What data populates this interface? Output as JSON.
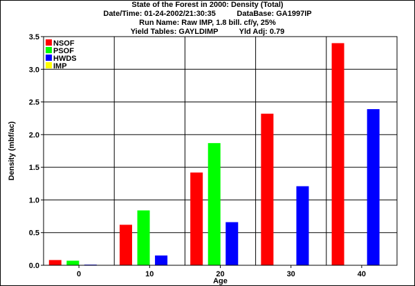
{
  "header": {
    "title": "State of the Forest in 2000: Density (Total)",
    "datetime": "Date/Time: 01-24-2002/21:30:35",
    "database": "DataBase: GA1997IP",
    "run_name": "Run Name: Raw IMP, 1.8 bill. cf/y, 25%",
    "yield_tables": "Yield Tables: GAYLDIMP",
    "yld_adj": "Yld Adj: 0.79"
  },
  "chart_data": {
    "type": "bar",
    "xlabel": "Age",
    "ylabel": "Density (mbf/ac)",
    "categories": [
      "0",
      "10",
      "20",
      "30",
      "40"
    ],
    "ylim": [
      0,
      3.5
    ],
    "yticks": [
      "0.0",
      "0.5",
      "1.0",
      "1.5",
      "2.0",
      "2.5",
      "3.0",
      "3.5"
    ],
    "grid": true,
    "legend_position": "top-left",
    "series": [
      {
        "name": "NSOF",
        "color": "#ff0000",
        "values": [
          0.08,
          0.62,
          1.42,
          2.32,
          3.4
        ]
      },
      {
        "name": "PSOF",
        "color": "#00ff00",
        "values": [
          0.07,
          0.84,
          1.87,
          0,
          0
        ]
      },
      {
        "name": "HWDS",
        "color": "#0000ff",
        "values": [
          0.01,
          0.15,
          0.66,
          1.21,
          2.39
        ]
      },
      {
        "name": "IMP",
        "color": "#ffff00",
        "values": [
          0,
          0,
          0,
          0,
          0
        ]
      }
    ]
  }
}
